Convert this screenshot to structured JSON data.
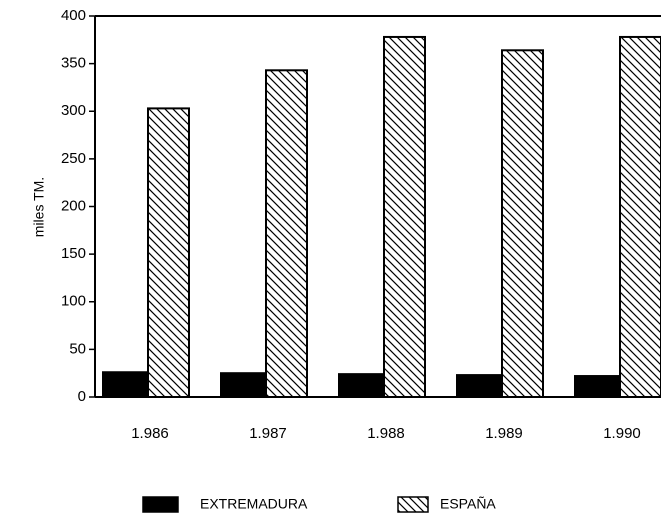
{
  "chart_data": {
    "type": "bar",
    "ylabel": "miles TM.",
    "categories": [
      "1.986",
      "1.987",
      "1.988",
      "1.989",
      "1.990"
    ],
    "series": [
      {
        "name": "EXTREMADURA",
        "color": "#000000",
        "fill": "solid",
        "values": [
          26,
          25,
          24,
          23,
          22
        ]
      },
      {
        "name": "ESPAÑA",
        "color": "#000000",
        "fill": "hatch",
        "values": [
          303,
          343,
          378,
          364,
          378
        ]
      }
    ],
    "ylim": [
      0,
      400
    ],
    "yticks": [
      0,
      50,
      100,
      150,
      200,
      250,
      300,
      350,
      400
    ],
    "grid": false,
    "legend": "bottom"
  }
}
